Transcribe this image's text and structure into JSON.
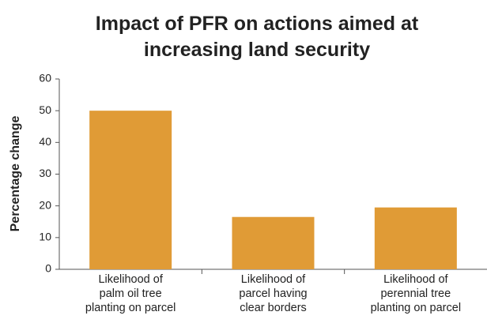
{
  "chart_data": {
    "type": "bar",
    "title": "Impact of PFR on actions aimed at\nincreasing land security",
    "y_label": "Percentage change",
    "categories": [
      "Likelihood of\npalm oil tree\nplanting on parcel",
      "Likelihood of\nparcel having\nclear borders",
      "Likelihood of\nperennial tree\nplanting on parcel"
    ],
    "values": [
      50,
      16.5,
      19.5
    ],
    "color": "#e09b36",
    "ylim": [
      0,
      60
    ],
    "yticks": [
      0,
      10,
      20,
      30,
      40,
      50,
      60
    ],
    "grid": false
  }
}
